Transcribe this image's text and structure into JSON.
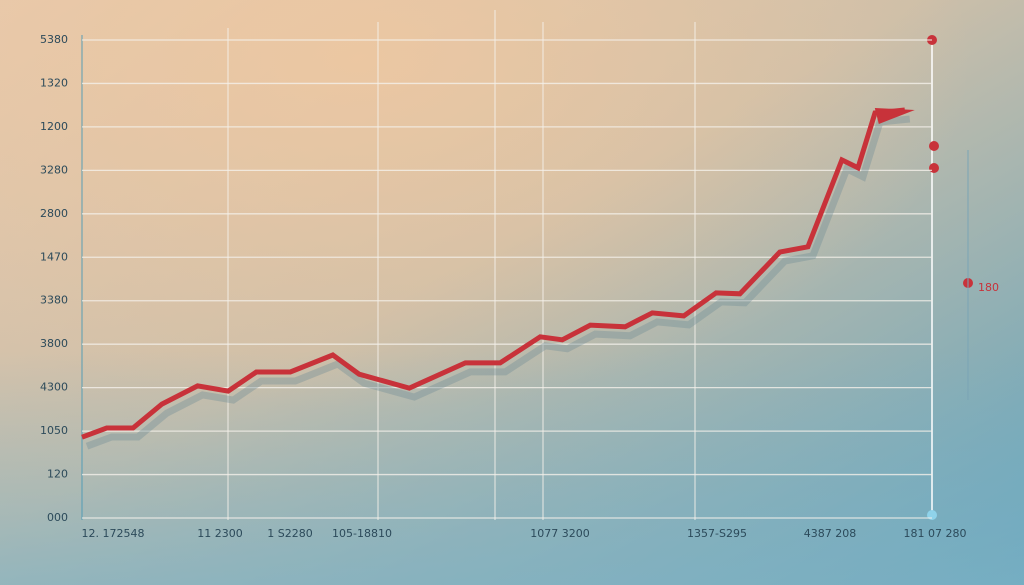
{
  "chart_data": {
    "type": "line",
    "y_categories": [
      "000",
      "120",
      "1050",
      "4300",
      "3800",
      "3380",
      "1470",
      "2800",
      "3280",
      "1200",
      "1320",
      "5380"
    ],
    "x_labels": [
      "12. 172548",
      "11 2300",
      "1 S2280",
      "105-18810",
      "1077 3200",
      "1357-S295",
      "4387 208",
      "181 07 280"
    ],
    "annotation": "180",
    "xlim": [
      0,
      100
    ],
    "series": [
      {
        "color": "#c8323a",
        "x": [
          0,
          2.9,
          6.0,
          9.4,
          13.6,
          17.2,
          20.5,
          24.5,
          29.5,
          32.6,
          38.5,
          45.1,
          49.2,
          53.9,
          56.5,
          59.8,
          63.9,
          67.1,
          70.8,
          74.6,
          77.4,
          82.1,
          85.4,
          89.4,
          91.3,
          93.3,
          96.8
        ],
        "values": [
          1.86,
          2.07,
          2.07,
          2.62,
          3.04,
          2.92,
          3.36,
          3.36,
          3.75,
          3.31,
          2.99,
          3.57,
          3.57,
          4.17,
          4.1,
          4.44,
          4.4,
          4.72,
          4.65,
          5.18,
          5.16,
          6.12,
          6.24,
          8.24,
          8.06,
          9.32,
          9.39
        ]
      }
    ],
    "grid": true
  }
}
